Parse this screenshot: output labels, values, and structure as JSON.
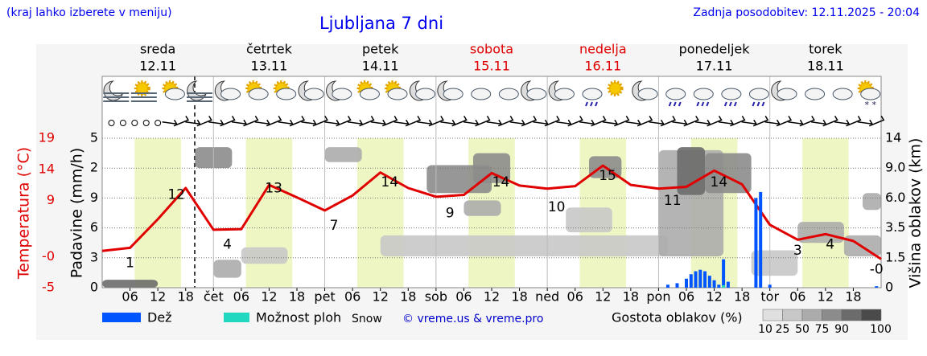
{
  "header": {
    "hint": "(kraj lahko izberete v meniju)",
    "title": "Ljubljana 7 dni",
    "updated": "Zadnja posodobitev: 12.11.2025 - 20:04"
  },
  "chart_data": {
    "type": "meteogram",
    "days": [
      {
        "name": "sreda",
        "date": "12.11",
        "color": "#000000"
      },
      {
        "name": "četrtek",
        "date": "13.11",
        "color": "#000000"
      },
      {
        "name": "petek",
        "date": "14.11",
        "color": "#000000"
      },
      {
        "name": "sobota",
        "date": "15.11",
        "color": "#e00000"
      },
      {
        "name": "nedelja",
        "date": "16.11",
        "color": "#e00000"
      },
      {
        "name": "ponedeljek",
        "date": "17.11",
        "color": "#000000"
      },
      {
        "name": "torek",
        "date": "18.11",
        "color": "#000000"
      }
    ],
    "xlim": [
      0,
      168
    ],
    "xticks": [
      {
        "value": 6,
        "label": "06"
      },
      12,
      18,
      {
        "value": 24,
        "label": "čet"
      },
      {
        "value": 30,
        "label": "06"
      },
      {
        "value": 36,
        "label": "12"
      },
      {
        "value": 42,
        "label": "18"
      },
      {
        "value": 48,
        "label": "pet"
      },
      {
        "value": 54,
        "label": "06"
      },
      {
        "value": 60,
        "label": "12"
      },
      {
        "value": 66,
        "label": "18"
      },
      {
        "value": 72,
        "label": "sob"
      },
      {
        "value": 78,
        "label": "06"
      },
      {
        "value": 84,
        "label": "12"
      },
      {
        "value": 90,
        "label": "18"
      },
      {
        "value": 96,
        "label": "ned"
      },
      {
        "value": 102,
        "label": "06"
      },
      {
        "value": 108,
        "label": "12"
      },
      {
        "value": 114,
        "label": "18"
      },
      {
        "value": 120,
        "label": "pon"
      },
      {
        "value": 126,
        "label": "06"
      },
      {
        "value": 132,
        "label": "12"
      },
      {
        "value": 138,
        "label": "18"
      },
      {
        "value": 144,
        "label": "tor"
      },
      {
        "value": 150,
        "label": "06"
      },
      {
        "value": 156,
        "label": "12"
      },
      {
        "value": 162,
        "label": "18"
      }
    ],
    "daylight": [
      7,
      17
    ],
    "temperature": {
      "name": "Temperatura (°C)",
      "color": "#e00000",
      "ylim": [
        -5,
        19
      ],
      "yticks": [
        19,
        14,
        9,
        {
          "value": 0,
          "label": "-0"
        },
        -5
      ],
      "x": [
        0,
        6,
        12,
        18,
        24,
        30,
        36,
        42,
        48,
        54,
        60,
        66,
        72,
        78,
        84,
        90,
        96,
        102,
        108,
        114,
        120,
        126,
        132,
        138,
        144,
        150,
        156,
        162,
        168
      ],
      "values": [
        0.9,
        1.4,
        6.0,
        11.0,
        4.3,
        4.4,
        11.5,
        9.5,
        7.4,
        9.8,
        13.5,
        11.0,
        9.6,
        9.9,
        13.4,
        11.4,
        10.9,
        11.3,
        14.6,
        11.5,
        10.9,
        11.2,
        13.8,
        11.6,
        5.1,
        2.7,
        3.6,
        2.5,
        -0.4
      ],
      "labels": [
        {
          "x": 6,
          "value": 1
        },
        {
          "x": 16,
          "value": 12
        },
        {
          "x": 27,
          "value": 4
        },
        {
          "x": 37,
          "value": 13
        },
        {
          "x": 50,
          "value": 7
        },
        {
          "x": 62,
          "value": 14
        },
        {
          "x": 75,
          "value": 9
        },
        {
          "x": 86,
          "value": 14
        },
        {
          "x": 98,
          "value": 10
        },
        {
          "x": 109,
          "value": 15
        },
        {
          "x": 123,
          "value": 11
        },
        {
          "x": 133,
          "value": 14
        },
        {
          "x": 150,
          "value": 3
        },
        {
          "x": 157,
          "value": 4
        },
        {
          "x": 167,
          "value": 0,
          "label": "-0"
        }
      ]
    },
    "precipitation": {
      "name": "Padavine (mm/h)",
      "tick_labels": [
        "5",
        "2",
        "9",
        "6",
        "3",
        "0"
      ],
      "ylim": [
        0,
        5
      ],
      "series": [
        {
          "name": "Dež",
          "color": "#0055ff",
          "x": [
            122,
            124,
            126,
            127,
            128,
            129,
            130,
            131,
            132,
            133,
            134,
            135,
            141,
            142,
            144,
            167
          ],
          "values": [
            0.1,
            0.15,
            0.3,
            0.45,
            0.55,
            0.6,
            0.55,
            0.4,
            0.25,
            0.1,
            0.95,
            0.2,
            3.0,
            3.2,
            0.1,
            0.05
          ]
        },
        {
          "name": "Možnost ploh",
          "color": "#20d8c0",
          "x": [
            134
          ],
          "values": [
            0.08
          ]
        }
      ],
      "snow_label": "Snow"
    },
    "clouds": {
      "name": "Višina oblakov (km)",
      "y2lim": [
        0,
        14
      ],
      "y2ticks": [
        14,
        {
          "value": 9,
          "label": "9.0"
        },
        {
          "value": 6,
          "label": "6.0"
        },
        3.5,
        1.5,
        0
      ],
      "blocks": [
        {
          "from": 0,
          "to": 12,
          "low": 0,
          "high": 0.4,
          "density": 90
        },
        {
          "from": 20,
          "to": 28,
          "low": 9,
          "high": 12.5,
          "density": 75
        },
        {
          "from": 24,
          "to": 30,
          "low": 0.5,
          "high": 1.4,
          "density": 50
        },
        {
          "from": 30,
          "to": 40,
          "low": 1.2,
          "high": 2.2,
          "density": 25
        },
        {
          "from": 48,
          "to": 56,
          "low": 10,
          "high": 12.5,
          "density": 50
        },
        {
          "from": 60,
          "to": 122,
          "low": 1.6,
          "high": 3.0,
          "density": 25
        },
        {
          "from": 70,
          "to": 84,
          "low": 6.5,
          "high": 9.5,
          "density": 75
        },
        {
          "from": 80,
          "to": 88,
          "low": 7.5,
          "high": 11.5,
          "density": 75
        },
        {
          "from": 78,
          "to": 86,
          "low": 4.5,
          "high": 5.8,
          "density": 50
        },
        {
          "from": 100,
          "to": 110,
          "low": 3.2,
          "high": 5.2,
          "density": 25
        },
        {
          "from": 105,
          "to": 112,
          "low": 8,
          "high": 11,
          "density": 75
        },
        {
          "from": 120,
          "to": 134,
          "low": 1.6,
          "high": 12,
          "density": 50
        },
        {
          "from": 124,
          "to": 130,
          "low": 6.3,
          "high": 12.5,
          "density": 90
        },
        {
          "from": 130,
          "to": 140,
          "low": 6.5,
          "high": 11.5,
          "density": 75
        },
        {
          "from": 140,
          "to": 150,
          "low": 0.6,
          "high": 2.0,
          "density": 25
        },
        {
          "from": 150,
          "to": 160,
          "low": 2.5,
          "high": 4.0,
          "density": 50
        },
        {
          "from": 160,
          "to": 168,
          "low": 1.6,
          "high": 3.0,
          "density": 50
        },
        {
          "from": 164,
          "to": 168,
          "low": 5,
          "high": 6.5,
          "density": 50
        }
      ]
    },
    "cloud_density": {
      "title": "Gostota oblakov (%)",
      "levels": [
        10,
        25,
        50,
        75,
        90,
        100
      ],
      "colors": [
        "#e0e0e0",
        "#c8c8c8",
        "#acacac",
        "#8c8c8c",
        "#6c6c6c",
        "#4a4a4a"
      ]
    },
    "credit": "© vreme.us & vreme.pro"
  }
}
